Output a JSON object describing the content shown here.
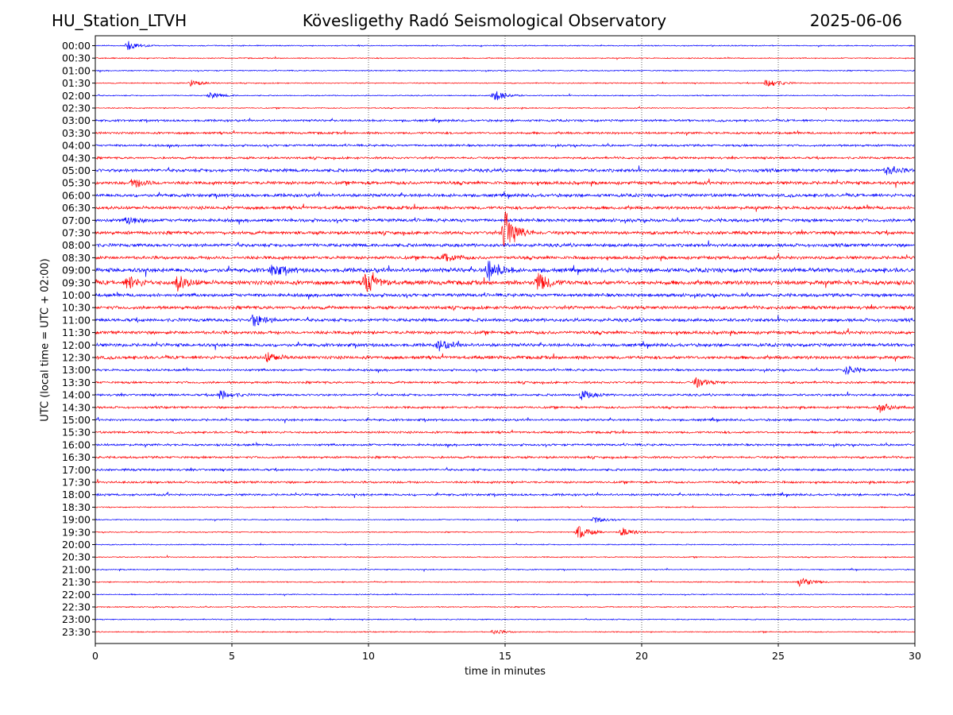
{
  "header": {
    "station": "HU_Station_LTVH",
    "title": "Kövesligethy Radó Seismological Observatory",
    "date": "2025-06-06"
  },
  "chart_data": {
    "type": "line",
    "title": "Kövesligethy Radó Seismological Observatory",
    "xlabel": "time in minutes",
    "ylabel": "UTC (local time = UTC + 02:00)",
    "xlim": [
      0,
      30
    ],
    "xticks": [
      0,
      5,
      10,
      15,
      20,
      25,
      30
    ],
    "grid": "vertical dotted at x ticks",
    "trace_colors": [
      "#0000ff",
      "#ff0000"
    ],
    "rows": [
      "00:00",
      "00:30",
      "01:00",
      "01:30",
      "02:00",
      "02:30",
      "03:00",
      "03:30",
      "04:00",
      "04:30",
      "05:00",
      "05:30",
      "06:00",
      "06:30",
      "07:00",
      "07:30",
      "08:00",
      "08:30",
      "09:00",
      "09:30",
      "10:00",
      "10:30",
      "11:00",
      "11:30",
      "12:00",
      "12:30",
      "13:00",
      "13:30",
      "14:00",
      "14:30",
      "15:00",
      "15:30",
      "16:00",
      "16:30",
      "17:00",
      "17:30",
      "18:00",
      "18:30",
      "19:00",
      "19:30",
      "20:00",
      "20:30",
      "21:00",
      "21:30",
      "22:00",
      "22:30",
      "23:00",
      "23:30"
    ],
    "noise_level": [
      1,
      1,
      1,
      1,
      1,
      1,
      2,
      2,
      2,
      2,
      3,
      3,
      3,
      3,
      3,
      3,
      3,
      3,
      4,
      4,
      3,
      3,
      3,
      3,
      3,
      3,
      2,
      2,
      2,
      2,
      2,
      2,
      2,
      2,
      2,
      2,
      2,
      1,
      1,
      1,
      1,
      1,
      1,
      1,
      1,
      1,
      1,
      1
    ],
    "events": [
      {
        "row": "00:00",
        "t": 1.2,
        "amp": 6
      },
      {
        "row": "01:30",
        "t": 3.5,
        "amp": 4
      },
      {
        "row": "01:30",
        "t": 24.6,
        "amp": 7
      },
      {
        "row": "02:00",
        "t": 4.2,
        "amp": 4
      },
      {
        "row": "02:00",
        "t": 14.6,
        "amp": 8
      },
      {
        "row": "05:00",
        "t": 29.0,
        "amp": 6
      },
      {
        "row": "05:30",
        "t": 1.4,
        "amp": 6
      },
      {
        "row": "07:00",
        "t": 1.2,
        "amp": 5
      },
      {
        "row": "07:30",
        "t": 15.0,
        "amp": 28
      },
      {
        "row": "08:30",
        "t": 12.8,
        "amp": 6
      },
      {
        "row": "09:00",
        "t": 6.5,
        "amp": 8
      },
      {
        "row": "09:00",
        "t": 14.4,
        "amp": 14
      },
      {
        "row": "09:30",
        "t": 1.2,
        "amp": 8
      },
      {
        "row": "09:30",
        "t": 3.0,
        "amp": 9
      },
      {
        "row": "09:30",
        "t": 9.9,
        "amp": 14
      },
      {
        "row": "09:30",
        "t": 16.2,
        "amp": 12
      },
      {
        "row": "11:00",
        "t": 5.8,
        "amp": 8
      },
      {
        "row": "12:00",
        "t": 12.6,
        "amp": 7
      },
      {
        "row": "12:30",
        "t": 6.3,
        "amp": 6
      },
      {
        "row": "13:00",
        "t": 27.5,
        "amp": 6
      },
      {
        "row": "13:30",
        "t": 22.0,
        "amp": 6
      },
      {
        "row": "14:00",
        "t": 4.6,
        "amp": 6
      },
      {
        "row": "14:00",
        "t": 17.8,
        "amp": 6
      },
      {
        "row": "14:30",
        "t": 28.7,
        "amp": 6
      },
      {
        "row": "19:00",
        "t": 18.3,
        "amp": 4
      },
      {
        "row": "19:30",
        "t": 17.7,
        "amp": 9
      },
      {
        "row": "19:30",
        "t": 19.3,
        "amp": 6
      },
      {
        "row": "21:30",
        "t": 25.8,
        "amp": 7
      },
      {
        "row": "23:30",
        "t": 14.6,
        "amp": 3
      }
    ]
  }
}
